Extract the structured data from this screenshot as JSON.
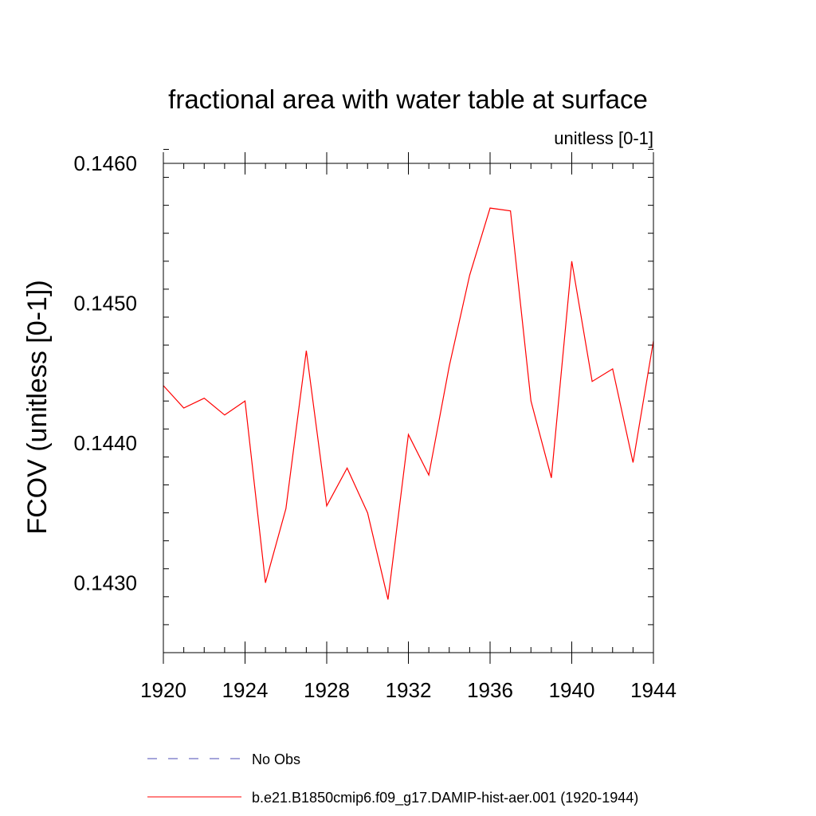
{
  "chart_data": {
    "type": "line",
    "title": "fractional area with water table at surface",
    "subtitle": "unitless [0-1]",
    "ylabel": "FCOV  (unitless [0-1])",
    "xlabel": "",
    "xlim": [
      1920,
      1944
    ],
    "ylim": [
      0.1425,
      0.146
    ],
    "x_ticks": [
      1920,
      1924,
      1928,
      1932,
      1936,
      1940,
      1944
    ],
    "x_tick_labels": [
      "1920",
      "1924",
      "1928",
      "1932",
      "1936",
      "1940",
      "1944"
    ],
    "y_ticks": [
      0.143,
      0.144,
      0.145,
      0.146
    ],
    "y_tick_labels": [
      "0.1430",
      "0.1440",
      "0.1450",
      "0.1460"
    ],
    "grid": false,
    "legend_position": "bottom",
    "series": [
      {
        "name": "b.e21.B1850cmip6.f09_g17.DAMIP-hist-aer.001 (1920-1944)",
        "color": "#ff0000",
        "style": "solid",
        "x": [
          1920,
          1921,
          1922,
          1923,
          1924,
          1925,
          1926,
          1927,
          1928,
          1929,
          1930,
          1931,
          1932,
          1933,
          1934,
          1935,
          1936,
          1937,
          1938,
          1939,
          1940,
          1941,
          1942,
          1943,
          1944
        ],
        "y": [
          0.14441,
          0.14425,
          0.14432,
          0.1442,
          0.1443,
          0.143,
          0.14353,
          0.14466,
          0.14355,
          0.14382,
          0.1435,
          0.14288,
          0.14406,
          0.14377,
          0.14455,
          0.1452,
          0.14568,
          0.14566,
          0.1443,
          0.14375,
          0.1453,
          0.14444,
          0.14453,
          0.14386,
          0.14473
        ]
      }
    ],
    "legend": [
      {
        "label": "No Obs",
        "color": "#4b4bb4",
        "style": "dashed"
      },
      {
        "label": "b.e21.B1850cmip6.f09_g17.DAMIP-hist-aer.001 (1920-1944)",
        "color": "#ff0000",
        "style": "solid"
      }
    ]
  }
}
